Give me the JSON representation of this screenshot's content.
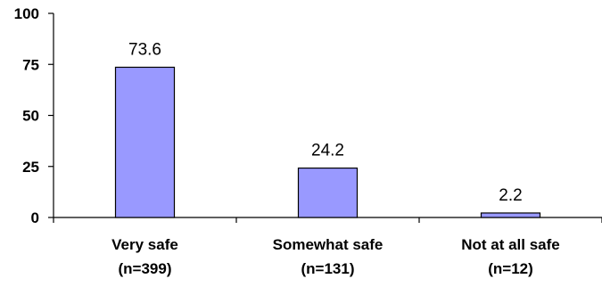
{
  "chart_data": {
    "type": "bar",
    "title": "",
    "xlabel": "",
    "ylabel": "",
    "categories": [
      "Very safe",
      "Somewhat safe",
      "Not at all safe"
    ],
    "sample_sizes": [
      "(n=399)",
      "(n=131)",
      "(n=12)"
    ],
    "values": [
      73.6,
      24.2,
      2.2
    ],
    "value_labels": [
      "73.6",
      "24.2",
      "2.2"
    ],
    "ylim": [
      0,
      100
    ],
    "yticks": [
      0,
      25,
      50,
      75,
      100
    ],
    "ytick_labels": [
      "0",
      "25",
      "50",
      "75",
      "100"
    ],
    "grid": false,
    "legend": "none",
    "bar_color": "#9999ff",
    "bar_edge_color": "#000000"
  }
}
